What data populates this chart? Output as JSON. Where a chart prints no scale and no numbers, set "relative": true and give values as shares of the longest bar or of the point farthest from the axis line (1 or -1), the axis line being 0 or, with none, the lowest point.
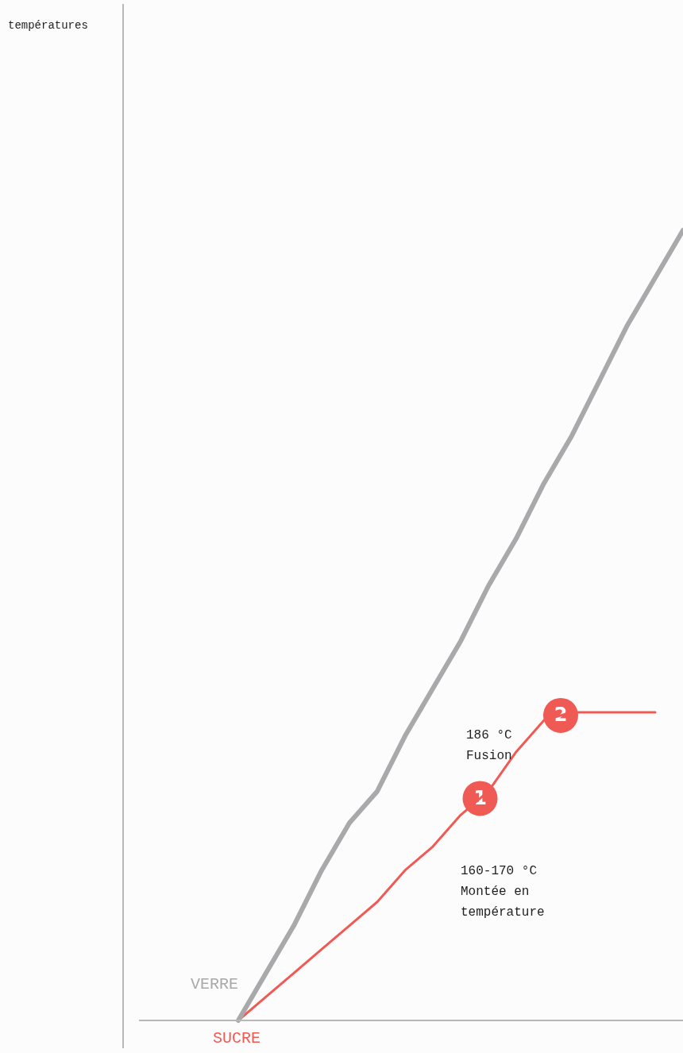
{
  "chart_data": {
    "type": "line",
    "relative": true,
    "categories": [
      null,
      null,
      null,
      null,
      null,
      null,
      null,
      null,
      null,
      null,
      null,
      null,
      null,
      null,
      null,
      null,
      null,
      null,
      null,
      null,
      null
    ],
    "series": [
      {
        "name": "VERRE",
        "color": "#a9a9ab",
        "values": [
          null,
          null,
          null,
          null,
          0,
          0.06,
          0.12,
          0.19,
          0.25,
          0.29,
          0.36,
          0.42,
          0.48,
          0.55,
          0.61,
          0.68,
          0.74,
          0.81,
          0.88,
          0.94,
          1.0
        ]
      },
      {
        "name": "SUCRE",
        "color": "#f05a55",
        "values": [
          null,
          null,
          null,
          null,
          0,
          0.03,
          0.06,
          0.09,
          0.12,
          0.15,
          0.19,
          0.22,
          0.26,
          0.29,
          0.34,
          0.38,
          0.39,
          0.39,
          0.39,
          0.39,
          null
        ]
      }
    ],
    "annotations": [
      "températures",
      "1",
      "160-170 °C\nMontée en\ntempérature",
      "2",
      "186 °C\nFusion"
    ],
    "grid": false,
    "legend": false,
    "marker": "none",
    "line_style": "solid"
  }
}
